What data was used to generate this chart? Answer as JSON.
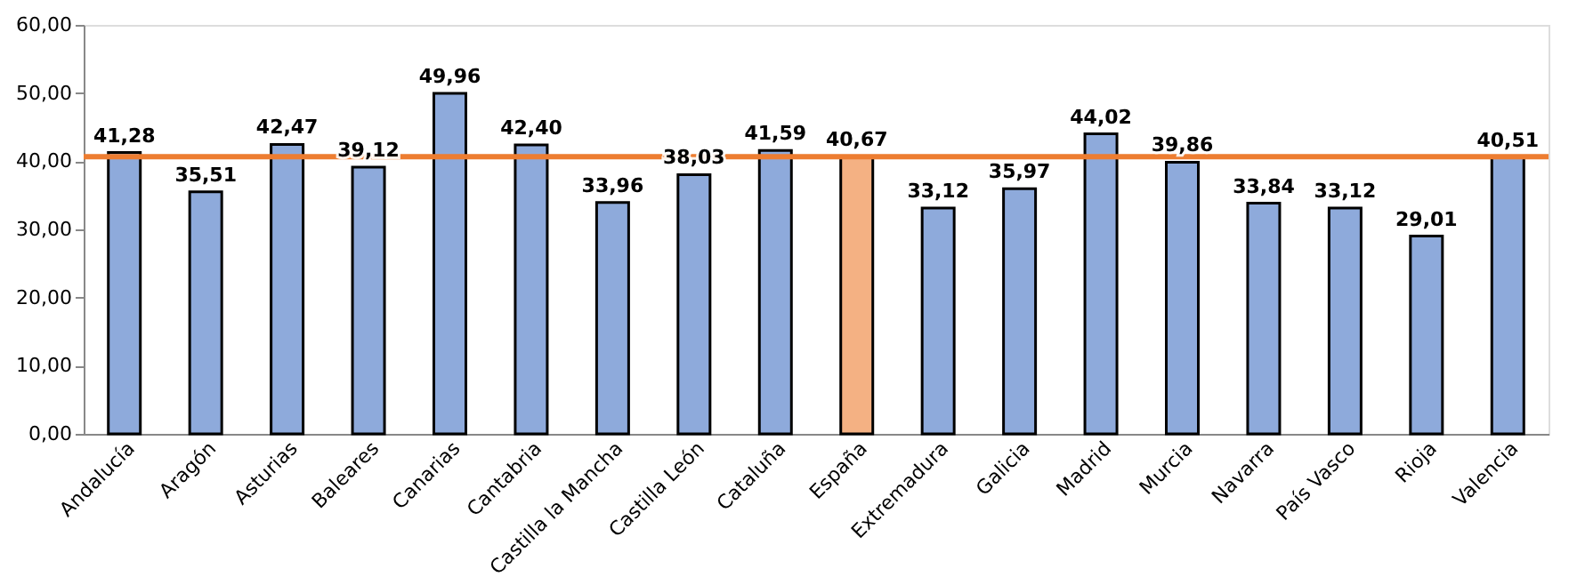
{
  "chart_data": {
    "type": "bar",
    "categories": [
      "Andalucía",
      "Aragón",
      "Asturias",
      "Baleares",
      "Canarias",
      "Cantabria",
      "Castilla la Mancha",
      "Castilla León",
      "Cataluña",
      "España",
      "Extremadura",
      "Galicia",
      "Madrid",
      "Murcia",
      "Navarra",
      "País Vasco",
      "Rioja",
      "Valencia"
    ],
    "values": [
      41.28,
      35.51,
      42.47,
      39.12,
      49.96,
      42.4,
      33.96,
      38.03,
      41.59,
      40.67,
      33.12,
      35.97,
      44.02,
      39.86,
      33.84,
      33.12,
      29.01,
      40.51
    ],
    "colors": [
      "#8eaadb",
      "#8eaadb",
      "#8eaadb",
      "#8eaadb",
      "#8eaadb",
      "#8eaadb",
      "#8eaadb",
      "#8eaadb",
      "#8eaadb",
      "#f4b183",
      "#8eaadb",
      "#8eaadb",
      "#8eaadb",
      "#8eaadb",
      "#8eaadb",
      "#8eaadb",
      "#8eaadb",
      "#8eaadb"
    ],
    "value_labels": [
      "41,28",
      "35,51",
      "42,47",
      "39,12",
      "49,96",
      "42,40",
      "33,96",
      "38,03",
      "41,59",
      "40,67",
      "33,12",
      "35,97",
      "44,02",
      "39,86",
      "33,84",
      "33,12",
      "29,01",
      "40,51"
    ],
    "ylim": [
      0,
      60
    ],
    "yticks": [
      {
        "value": 0,
        "label": "0,00"
      },
      {
        "value": 10,
        "label": "10,00"
      },
      {
        "value": 20,
        "label": "20,00"
      },
      {
        "value": 30,
        "label": "30,00"
      },
      {
        "value": 40,
        "label": "40,00"
      },
      {
        "value": 50,
        "label": "50,00"
      },
      {
        "value": 60,
        "label": "60,00"
      }
    ],
    "ref_lines": [
      {
        "axis": "y",
        "value": 40.67,
        "color": "#ed7d31"
      }
    ],
    "grid": false
  }
}
